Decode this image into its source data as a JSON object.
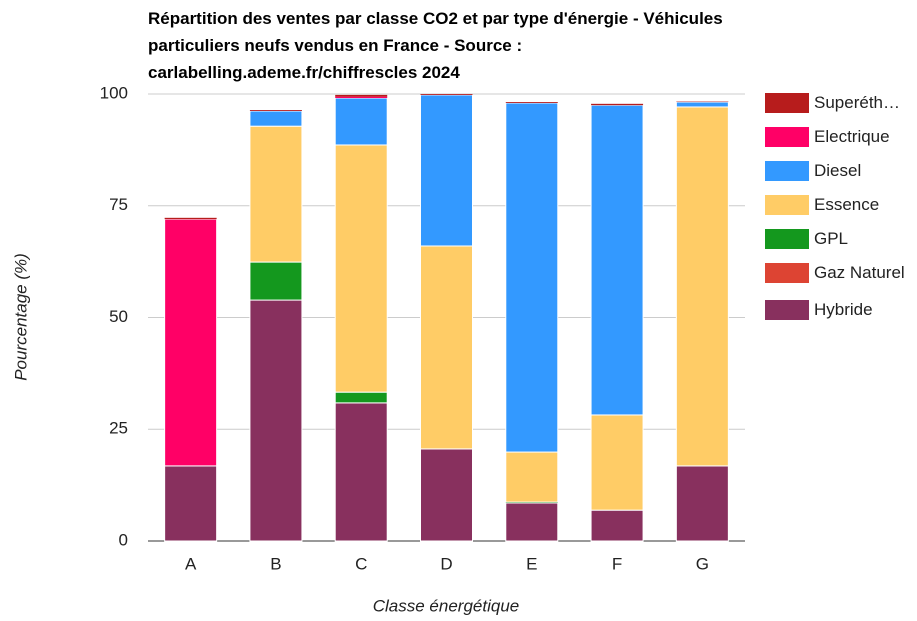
{
  "chart_data": {
    "type": "stacked_bar",
    "title": "Répartition des ventes par classe CO2 et par type d'énergie - Véhicules particuliers neufs vendus en France - Source : carlabelling.ademe.fr/chiffrescles 2024",
    "x_label": "Classe énergétique",
    "y_label": "Pourcentage (%)",
    "categories": [
      "A",
      "B",
      "C",
      "D",
      "E",
      "F",
      "G"
    ],
    "series": [
      {
        "name": "Hybride",
        "color": "#88305e",
        "values": [
          16.8,
          53.9,
          30.9,
          20.6,
          8.5,
          6.9,
          16.8
        ]
      },
      {
        "name": "Gaz Naturel",
        "color": "#dd4433",
        "values": [
          0,
          0,
          0,
          0,
          0,
          0,
          0
        ]
      },
      {
        "name": "GPL",
        "color": "#14981e",
        "values": [
          0,
          8.5,
          2.4,
          0,
          0.2,
          0,
          0
        ]
      },
      {
        "name": "Essence",
        "color": "#ffcc66",
        "values": [
          0,
          30.4,
          55.3,
          45.4,
          11.2,
          21.3,
          80.3
        ]
      },
      {
        "name": "Diesel",
        "color": "#3399ff",
        "values": [
          0,
          3.4,
          10.5,
          33.8,
          78.1,
          69.3,
          1.1
        ]
      },
      {
        "name": "Electrique",
        "color": "#ff0066",
        "values": [
          55.2,
          0,
          0.3,
          0,
          0,
          0,
          0
        ]
      },
      {
        "name": "Superéth…",
        "color": "#b71c1c",
        "values": [
          0.3,
          0.2,
          0.4,
          0.2,
          0.2,
          0.3,
          0.1
        ]
      }
    ],
    "ylim": [
      0,
      100
    ],
    "yticks": [
      0,
      25,
      50,
      75,
      100
    ],
    "grid": true
  }
}
